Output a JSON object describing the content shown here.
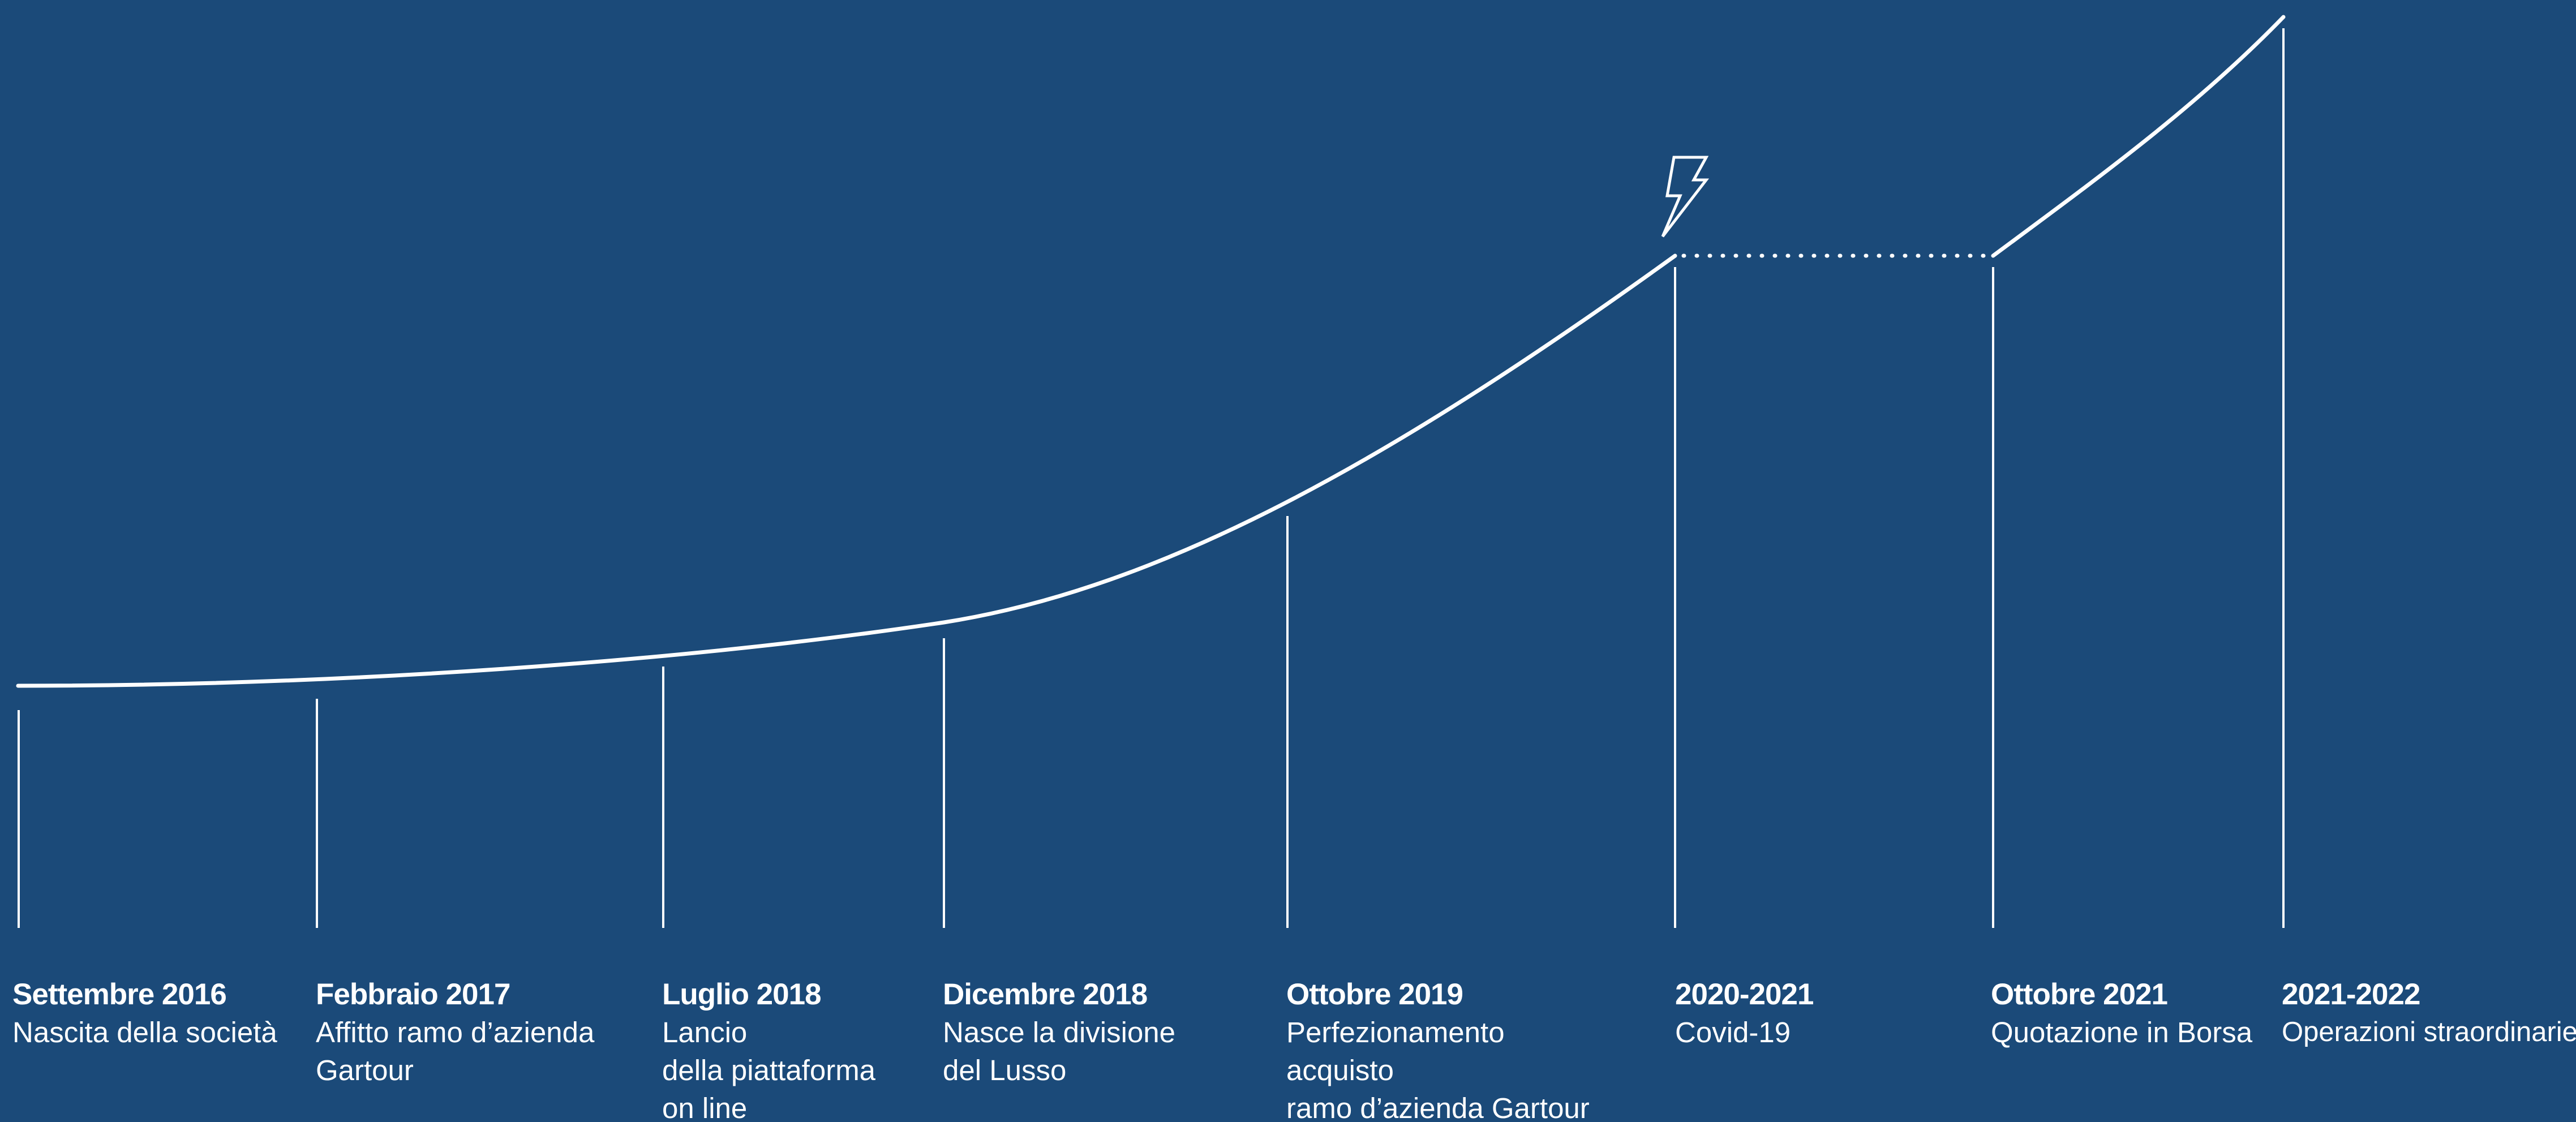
{
  "milestones": [
    {
      "date": "Settembre 2016",
      "description": "Nascita della società"
    },
    {
      "date": "Febbraio 2017",
      "description": "Affitto ramo d’azienda\nGartour"
    },
    {
      "date": "Luglio 2018",
      "description": "Lancio\ndella piattaforma\non line"
    },
    {
      "date": "Dicembre 2018",
      "description": "Nasce la divisione\ndel Lusso"
    },
    {
      "date": "Ottobre 2019",
      "description": "Perfezionamento acquisto\nramo d’azienda Gartour"
    },
    {
      "date": "2020-2021",
      "description": "Covid-19"
    },
    {
      "date": "Ottobre 2021",
      "description": "Quotazione in Borsa"
    },
    {
      "date": "2021-2022",
      "description": "Operazioni straordinarie"
    }
  ],
  "icons": {
    "covid_marker": "lightning-bolt-icon"
  },
  "colors": {
    "background": "#1b4a79",
    "line": "#ffffff"
  }
}
